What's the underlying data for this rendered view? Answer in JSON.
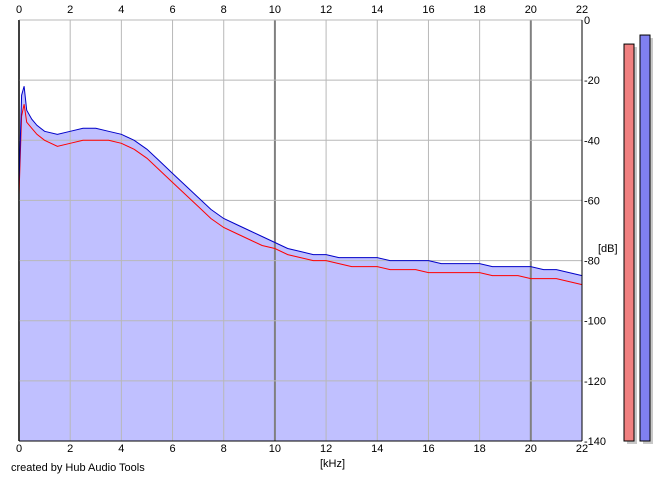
{
  "credit": "created by Hub Audio Tools",
  "colors": {
    "background": "#ffffff",
    "plot_fill": "#c0c0ff",
    "grid": "#b8b8b8",
    "grid_major": "#808080",
    "series_red": "#ff0000",
    "series_blue": "#0000c8",
    "meter_red": "#f08080",
    "meter_blue": "#8080f0",
    "meter_shadow": "#c8c8c8"
  },
  "chart_data": {
    "type": "line",
    "title": "",
    "xlabel": "[kHz]",
    "ylabel": "[dB]",
    "xlim": [
      0,
      22
    ],
    "ylim": [
      -140,
      0
    ],
    "x_ticks": [
      "0",
      "2",
      "4",
      "6",
      "8",
      "10",
      "12",
      "14",
      "16",
      "18",
      "20",
      "22"
    ],
    "y_ticks": [
      "0",
      "-20",
      "-40",
      "-60",
      "-80",
      "-100",
      "-120",
      "-140"
    ],
    "grid": true,
    "x_major_ticks": [
      0,
      10,
      20
    ],
    "series": [
      {
        "color": "#ff0000",
        "x": [
          0,
          0.1,
          0.2,
          0.3,
          0.5,
          0.7,
          1.0,
          1.5,
          2.0,
          2.5,
          3.0,
          3.5,
          4.0,
          4.5,
          5.0,
          5.5,
          6.0,
          6.5,
          7.0,
          7.5,
          8.0,
          8.5,
          9.0,
          9.5,
          10.0,
          10.5,
          11.0,
          11.5,
          12.0,
          12.5,
          13.0,
          13.5,
          14.0,
          14.5,
          15.0,
          15.5,
          16.0,
          16.5,
          17.0,
          17.5,
          18.0,
          18.5,
          19.0,
          19.5,
          20.0,
          20.5,
          21.0,
          21.5,
          22.0
        ],
        "y": [
          -58,
          -32,
          -28,
          -34,
          -36,
          -38,
          -40,
          -42,
          -41,
          -40,
          -40,
          -40,
          -41,
          -43,
          -46,
          -50,
          -54,
          -58,
          -62,
          -66,
          -69,
          -71,
          -73,
          -75,
          -76,
          -78,
          -79,
          -80,
          -80,
          -81,
          -82,
          -82,
          -82,
          -83,
          -83,
          -83,
          -84,
          -84,
          -84,
          -84,
          -84,
          -85,
          -85,
          -85,
          -86,
          -86,
          -86,
          -87,
          -88
        ]
      },
      {
        "color": "#0000c8",
        "x": [
          0,
          0.1,
          0.2,
          0.3,
          0.5,
          0.7,
          1.0,
          1.5,
          2.0,
          2.5,
          3.0,
          3.5,
          4.0,
          4.5,
          5.0,
          5.5,
          6.0,
          6.5,
          7.0,
          7.5,
          8.0,
          8.5,
          9.0,
          9.5,
          10.0,
          10.5,
          11.0,
          11.5,
          12.0,
          12.5,
          13.0,
          13.5,
          14.0,
          14.5,
          15.0,
          15.5,
          16.0,
          16.5,
          17.0,
          17.5,
          18.0,
          18.5,
          19.0,
          19.5,
          20.0,
          20.5,
          21.0,
          21.5,
          22.0
        ],
        "y": [
          -55,
          -25,
          -22,
          -30,
          -33,
          -35,
          -37,
          -38,
          -37,
          -36,
          -36,
          -37,
          -38,
          -40,
          -43,
          -47,
          -51,
          -55,
          -59,
          -63,
          -66,
          -68,
          -70,
          -72,
          -74,
          -76,
          -77,
          -78,
          -78,
          -79,
          -79,
          -79,
          -79,
          -80,
          -80,
          -80,
          -80,
          -81,
          -81,
          -81,
          -81,
          -82,
          -82,
          -82,
          -82,
          -83,
          -83,
          -84,
          -85
        ]
      }
    ],
    "meters": [
      {
        "color": "#f08080",
        "value": -8
      },
      {
        "color": "#8080f0",
        "value": -5
      }
    ]
  }
}
